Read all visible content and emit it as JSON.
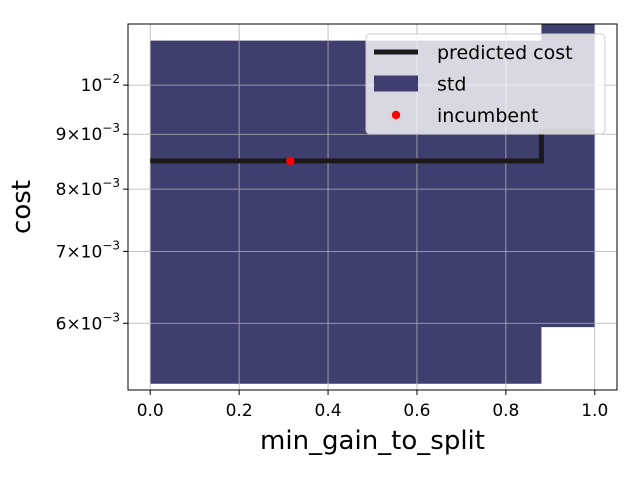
{
  "chart_data": {
    "type": "line",
    "title": "",
    "xlabel": "min_gain_to_split",
    "ylabel": "cost",
    "xlim": [
      -0.05,
      1.05
    ],
    "ylim": [
      0.0052,
      0.0114
    ],
    "yscale": "log",
    "grid": true,
    "legend_position": "top-right",
    "x_ticks": [
      {
        "value": 0.0,
        "label": "0.0"
      },
      {
        "value": 0.2,
        "label": "0.2"
      },
      {
        "value": 0.4,
        "label": "0.4"
      },
      {
        "value": 0.6,
        "label": "0.6"
      },
      {
        "value": 0.8,
        "label": "0.8"
      },
      {
        "value": 1.0,
        "label": "1.0"
      }
    ],
    "y_ticks": [
      {
        "value": 0.006,
        "base": "6",
        "exp": "−3",
        "style": "sci"
      },
      {
        "value": 0.007,
        "base": "7",
        "exp": "−3",
        "style": "sci"
      },
      {
        "value": 0.008,
        "base": "8",
        "exp": "−3",
        "style": "sci"
      },
      {
        "value": 0.009,
        "base": "9",
        "exp": "−3",
        "style": "sci"
      },
      {
        "value": 0.01,
        "base": "10",
        "exp": "−2",
        "style": "pow"
      }
    ],
    "series": [
      {
        "name": "predicted cost",
        "kind": "line",
        "color": "#1a1a1a",
        "x": [
          0.0,
          0.88,
          0.88,
          1.0
        ],
        "y": [
          0.0085,
          0.0085,
          0.00905,
          0.00905
        ]
      },
      {
        "name": "std",
        "kind": "band",
        "color": "#3f3f6f",
        "x": [
          0.0,
          0.88,
          0.88,
          1.0
        ],
        "lower": [
          0.00527,
          0.00527,
          0.00595,
          0.00595
        ],
        "upper": [
          0.011,
          0.011,
          0.0118,
          0.0118
        ]
      },
      {
        "name": "incumbent",
        "kind": "scatter",
        "color": "#ff0000",
        "x": [
          0.315
        ],
        "y": [
          0.0085
        ]
      }
    ]
  }
}
